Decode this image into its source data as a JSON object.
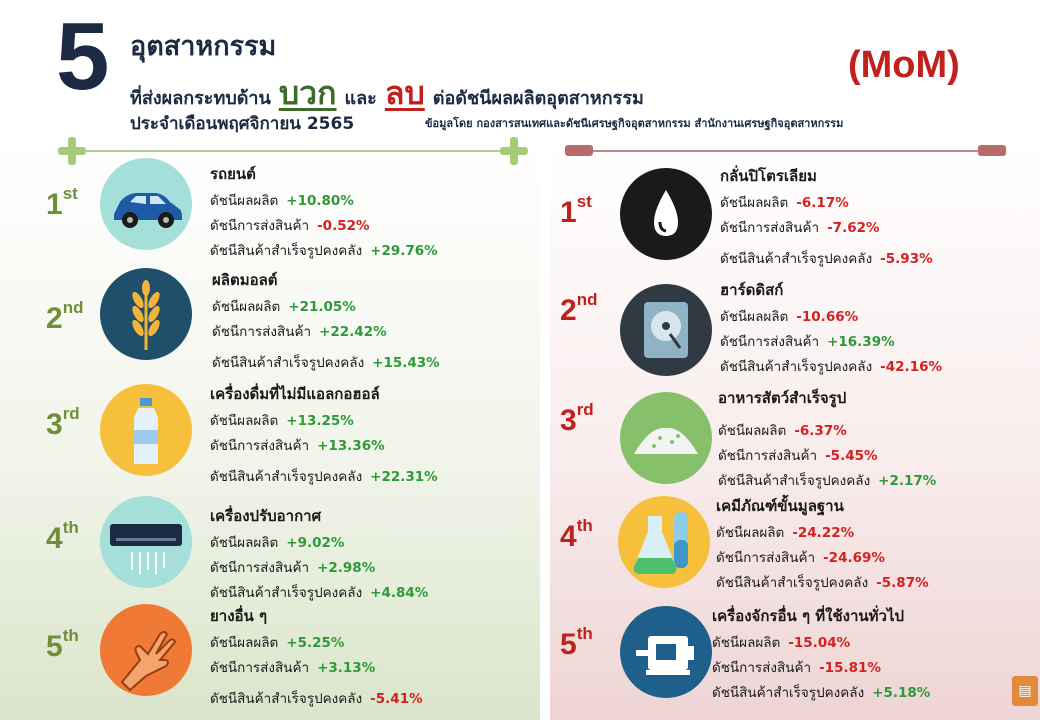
{
  "header": {
    "big_number": "5",
    "line1": "อุตสาหกรรม",
    "line2_prefix": "ที่ส่งผลกระทบด้าน",
    "positive_word": "บวก",
    "and_word": "และ",
    "negative_word": "ลบ",
    "line2_suffix": "ต่อดัชนีผลผลิตอุตสาหกรรม",
    "mom": "(MoM)",
    "month_line": "ประจำเดือนพฤศจิกายน 2565",
    "source": "ข้อมูลโดย กองสารสนเทศและดัชนีเศรษฐกิจอุตสาหกรรม สำนักงานเศรษฐกิจอุตสาหกรรม"
  },
  "labels": {
    "production": "ดัชนีผลผลิต",
    "shipment": "ดัชนีการส่งสินค้า",
    "inventory": "ดัชนีสินค้าสำเร็จรูปคงคลัง"
  },
  "positive": [
    {
      "rank_num": "1",
      "rank_suffix": "st",
      "name": "รถยนต์",
      "icon": "car-icon",
      "production": "+10.80%",
      "shipment": "-0.52%",
      "inventory": "+29.76%"
    },
    {
      "rank_num": "2",
      "rank_suffix": "nd",
      "name": "ผลิตมอลต์",
      "icon": "wheat-icon",
      "production": "+21.05%",
      "shipment": "+22.42%",
      "inventory": "+15.43%"
    },
    {
      "rank_num": "3",
      "rank_suffix": "rd",
      "name": "เครื่องดื่มที่ไม่มีแอลกอฮอล์",
      "icon": "bottle-icon",
      "production": "+13.25%",
      "shipment": "+13.36%",
      "inventory": "+22.31%"
    },
    {
      "rank_num": "4",
      "rank_suffix": "th",
      "name": "เครื่องปรับอากาศ",
      "icon": "air-conditioner-icon",
      "production": "+9.02%",
      "shipment": "+2.98%",
      "inventory": "+4.84%"
    },
    {
      "rank_num": "5",
      "rank_suffix": "th",
      "name": "ยางอื่น ๆ",
      "icon": "rubber-glove-icon",
      "production": "+5.25%",
      "shipment": "+3.13%",
      "inventory": "-5.41%"
    }
  ],
  "negative": [
    {
      "rank_num": "1",
      "rank_suffix": "st",
      "name": "กลั่นปิโตรเลียม",
      "icon": "oil-drop-icon",
      "production": "-6.17%",
      "shipment": "-7.62%",
      "inventory": "-5.93%"
    },
    {
      "rank_num": "2",
      "rank_suffix": "nd",
      "name": "ฮาร์ดดิสก์",
      "icon": "hard-disk-icon",
      "production": "-10.66%",
      "shipment": "+16.39%",
      "inventory": "-42.16%"
    },
    {
      "rank_num": "3",
      "rank_suffix": "rd",
      "name": "อาหารสัตว์สำเร็จรูป",
      "icon": "animal-feed-icon",
      "production": "-6.37%",
      "shipment": "-5.45%",
      "inventory": "+2.17%"
    },
    {
      "rank_num": "4",
      "rank_suffix": "th",
      "name": "เคมีภัณฑ์ขั้นมูลฐาน",
      "icon": "chemical-flask-icon",
      "production": "-24.22%",
      "shipment": "-24.69%",
      "inventory": "-5.87%"
    },
    {
      "rank_num": "5",
      "rank_suffix": "th",
      "name": "เครื่องจักรอื่น ๆ ที่ใช้งานทั่วไป",
      "icon": "motor-icon",
      "production": "-15.04%",
      "shipment": "-15.81%",
      "inventory": "+5.18%"
    }
  ],
  "colors": {
    "positive_value": "#2d9a3a",
    "negative_value": "#d42020",
    "left_rank": "#6f8f3a",
    "right_rank": "#c0211c",
    "navy": "#1c2a44"
  }
}
